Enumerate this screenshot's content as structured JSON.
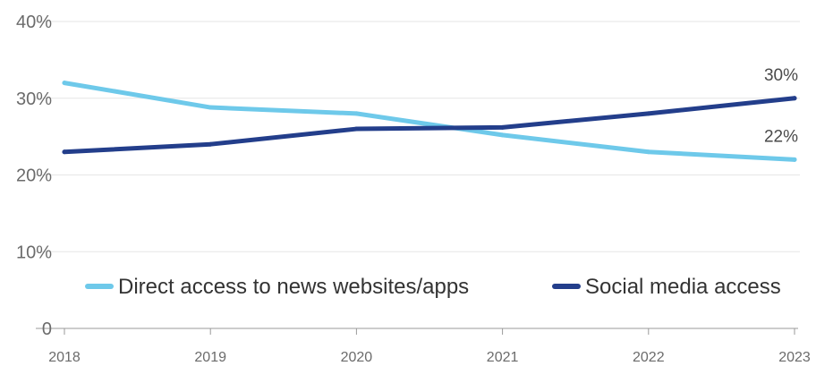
{
  "chart_data": {
    "type": "line",
    "x": [
      "2018",
      "2019",
      "2020",
      "2021",
      "2022",
      "2023"
    ],
    "y_ticks": [
      "0",
      "10%",
      "20%",
      "30%",
      "40%"
    ],
    "ylim": [
      0,
      40
    ],
    "grid": true,
    "legend_position": "bottom",
    "series": [
      {
        "name": "Direct access to news websites/apps",
        "color": "#6ec9ea",
        "values": [
          32,
          28.8,
          28,
          25.2,
          23,
          22
        ],
        "end_label": "22%"
      },
      {
        "name": "Social media access",
        "color": "#233e8b",
        "values": [
          23,
          24,
          26,
          26.2,
          28,
          30
        ],
        "end_label": "30%"
      }
    ]
  }
}
